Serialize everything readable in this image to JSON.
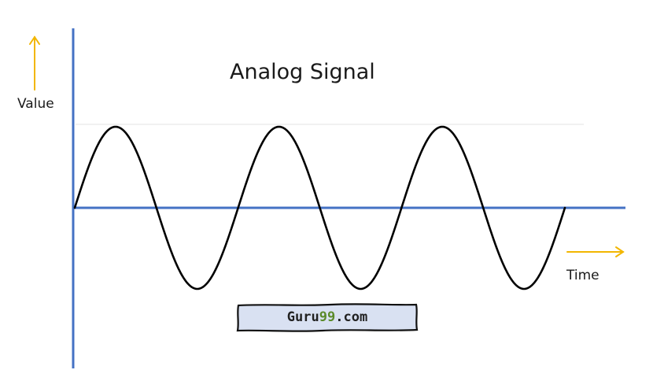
{
  "diagram": {
    "title": "Analog Signal",
    "y_label": "Value",
    "x_label": "Time",
    "axis_color": "#4472c4",
    "arrow_color": "#f2b600",
    "wave_color": "#000000",
    "wave": {
      "type": "sine",
      "cycles": 3
    }
  },
  "watermark": {
    "prefix": "Guru",
    "number": "99",
    "suffix": ".com",
    "number_color": "#5a8a2a",
    "fill_color": "#d9e1f2"
  }
}
